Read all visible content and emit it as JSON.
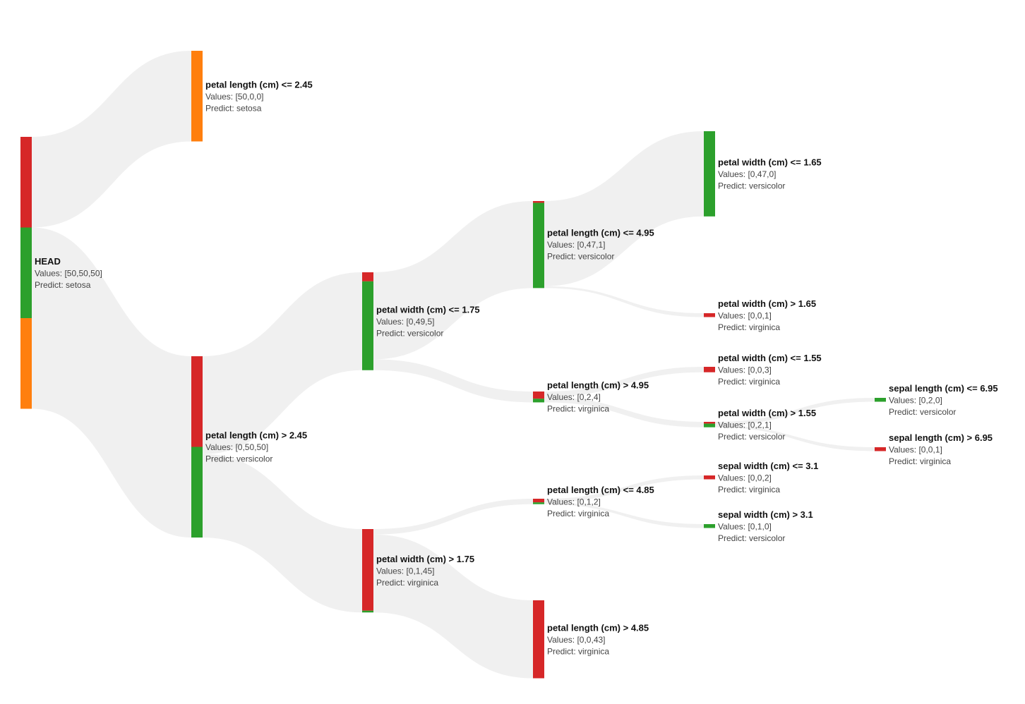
{
  "colors": {
    "setosa": "#ff7f0e",
    "versicolor": "#2ca02c",
    "virginica": "#d62728",
    "link": "#f0f0f0"
  },
  "class_order_in_bar": [
    "virginica",
    "versicolor",
    "setosa"
  ],
  "tree": {
    "nodes": [
      {
        "id": "head",
        "depth": 0,
        "title": "HEAD",
        "values_text": "Values: [50,50,50]",
        "predict_text": "Predict: setosa",
        "counts": [
          50,
          50,
          50
        ]
      },
      {
        "id": "n1",
        "depth": 1,
        "parent": "head",
        "title": "petal length (cm) <= 2.45",
        "values_text": "Values: [50,0,0]",
        "predict_text": "Predict: setosa",
        "counts": [
          50,
          0,
          0
        ]
      },
      {
        "id": "n2",
        "depth": 1,
        "parent": "head",
        "title": "petal length (cm) > 2.45",
        "values_text": "Values: [0,50,50]",
        "predict_text": "Predict: versicolor",
        "counts": [
          0,
          50,
          50
        ]
      },
      {
        "id": "n3",
        "depth": 2,
        "parent": "n2",
        "title": "petal width (cm) <= 1.75",
        "values_text": "Values: [0,49,5]",
        "predict_text": "Predict: versicolor",
        "counts": [
          0,
          49,
          5
        ]
      },
      {
        "id": "n4",
        "depth": 2,
        "parent": "n2",
        "title": "petal width (cm) > 1.75",
        "values_text": "Values: [0,1,45]",
        "predict_text": "Predict: virginica",
        "counts": [
          0,
          1,
          45
        ]
      },
      {
        "id": "n5",
        "depth": 3,
        "parent": "n3",
        "title": "petal length (cm) <= 4.95",
        "values_text": "Values: [0,47,1]",
        "predict_text": "Predict: versicolor",
        "counts": [
          0,
          47,
          1
        ]
      },
      {
        "id": "n6",
        "depth": 3,
        "parent": "n3",
        "title": "petal length (cm) > 4.95",
        "values_text": "Values: [0,2,4]",
        "predict_text": "Predict: virginica",
        "counts": [
          0,
          2,
          4
        ]
      },
      {
        "id": "n7",
        "depth": 3,
        "parent": "n4",
        "title": "petal length (cm) <= 4.85",
        "values_text": "Values: [0,1,2]",
        "predict_text": "Predict: virginica",
        "counts": [
          0,
          1,
          2
        ]
      },
      {
        "id": "n8",
        "depth": 3,
        "parent": "n4",
        "title": "petal length (cm) > 4.85",
        "values_text": "Values: [0,0,43]",
        "predict_text": "Predict: virginica",
        "counts": [
          0,
          0,
          43
        ]
      },
      {
        "id": "n9",
        "depth": 4,
        "parent": "n5",
        "title": "petal width (cm) <= 1.65",
        "values_text": "Values: [0,47,0]",
        "predict_text": "Predict: versicolor",
        "counts": [
          0,
          47,
          0
        ]
      },
      {
        "id": "n10",
        "depth": 4,
        "parent": "n5",
        "title": "petal width (cm) > 1.65",
        "values_text": "Values: [0,0,1]",
        "predict_text": "Predict: virginica",
        "counts": [
          0,
          0,
          1
        ]
      },
      {
        "id": "n11",
        "depth": 4,
        "parent": "n6",
        "title": "petal width (cm) <= 1.55",
        "values_text": "Values: [0,0,3]",
        "predict_text": "Predict: virginica",
        "counts": [
          0,
          0,
          3
        ]
      },
      {
        "id": "n12",
        "depth": 4,
        "parent": "n6",
        "title": "petal width (cm) > 1.55",
        "values_text": "Values: [0,2,1]",
        "predict_text": "Predict: versicolor",
        "counts": [
          0,
          2,
          1
        ]
      },
      {
        "id": "n13",
        "depth": 4,
        "parent": "n7",
        "title": "sepal width (cm) <= 3.1",
        "values_text": "Values: [0,0,2]",
        "predict_text": "Predict: virginica",
        "counts": [
          0,
          0,
          2
        ]
      },
      {
        "id": "n14",
        "depth": 4,
        "parent": "n7",
        "title": "sepal width (cm) > 3.1",
        "values_text": "Values: [0,1,0]",
        "predict_text": "Predict: versicolor",
        "counts": [
          0,
          1,
          0
        ]
      },
      {
        "id": "n15",
        "depth": 5,
        "parent": "n12",
        "title": "sepal length (cm) <= 6.95",
        "values_text": "Values: [0,2,0]",
        "predict_text": "Predict: versicolor",
        "counts": [
          0,
          2,
          0
        ]
      },
      {
        "id": "n16",
        "depth": 5,
        "parent": "n12",
        "title": "sepal length (cm) > 6.95",
        "values_text": "Values: [0,0,1]",
        "predict_text": "Predict: virginica",
        "counts": [
          0,
          0,
          1
        ]
      }
    ]
  }
}
